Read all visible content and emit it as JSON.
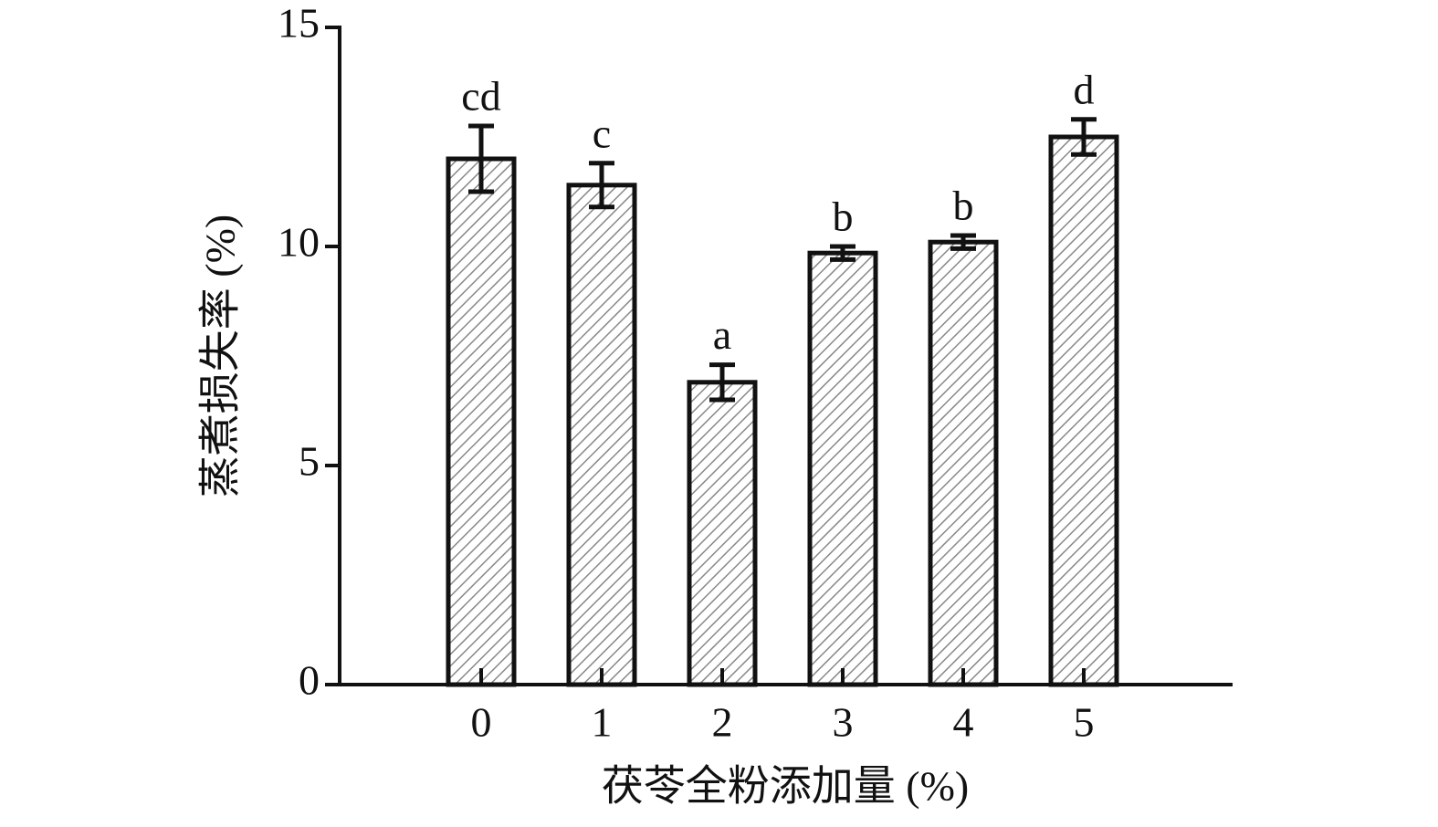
{
  "chart_data": {
    "type": "bar",
    "x_label": "茯苓全粉添加量 (%)",
    "y_label": "蒸煮损失率 (%)",
    "categories": [
      "0",
      "1",
      "2",
      "3",
      "4",
      "5"
    ],
    "values": [
      12.0,
      11.4,
      6.9,
      9.85,
      10.1,
      12.5
    ],
    "errors": [
      0.75,
      0.5,
      0.4,
      0.15,
      0.15,
      0.4
    ],
    "annotations": [
      "cd",
      "c",
      "a",
      "b",
      "b",
      "d"
    ],
    "color": "#888888",
    "ylim": [
      0,
      15
    ],
    "yticks": [
      0,
      5,
      10,
      15
    ],
    "grid": false
  }
}
